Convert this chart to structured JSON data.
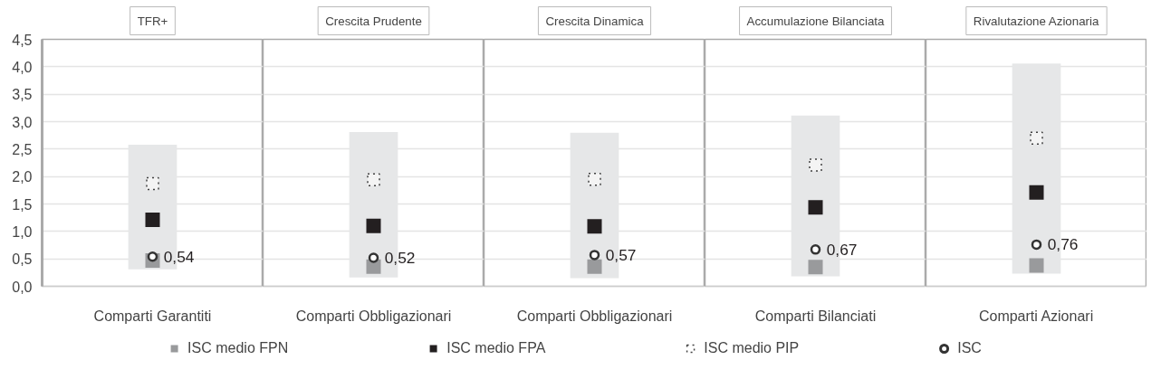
{
  "chart_data": [
    {
      "type": "bar",
      "title": "TFR+",
      "categories": [
        "Comparti Garantiti"
      ],
      "ylim": [
        0,
        4.5
      ],
      "yticks": [
        {
          "value": 0,
          "label": "0,0"
        },
        {
          "value": 0.5,
          "label": "0,5"
        },
        {
          "value": 1,
          "label": "1,0"
        },
        {
          "value": 1.5,
          "label": "1,5"
        },
        {
          "value": 2,
          "label": "2,0"
        },
        {
          "value": 2.5,
          "label": "2,5"
        },
        {
          "value": 3,
          "label": "3,0"
        },
        {
          "value": 3.5,
          "label": "3,5"
        },
        {
          "value": 4,
          "label": "4,0"
        },
        {
          "value": 4.5,
          "label": "4,5"
        }
      ],
      "grid": "y",
      "legend": "bottom",
      "series": [
        {
          "color": "#e6e7e8",
          "values": [
            2.27
          ],
          "base": [
            0.31
          ]
        },
        {
          "type": "scatter",
          "name": "ISC medio FPN",
          "marker": "square",
          "color": "#999a9c",
          "values": [
            0.47
          ]
        },
        {
          "type": "scatter",
          "name": "ISC medio FPA",
          "marker": "square",
          "color": "#231f20",
          "values": [
            1.21
          ]
        },
        {
          "type": "scatter",
          "name": "ISC medio PIP",
          "marker": "square",
          "line_style": "dotted",
          "color": "#404040",
          "values": [
            1.87
          ]
        },
        {
          "type": "scatter",
          "name": "ISC",
          "marker": "circle",
          "color": "#333333",
          "values": [
            0.54
          ],
          "value_labels": [
            "0,54"
          ]
        }
      ]
    },
    {
      "type": "bar",
      "title": "Crescita Prudente",
      "categories": [
        "Comparti Obbligazionari"
      ],
      "ylim": [
        0,
        4.5
      ],
      "yticks": [
        0,
        0.5,
        1,
        1.5,
        2,
        2.5,
        3,
        3.5,
        4,
        4.5
      ],
      "grid": "y",
      "tick_labels": "x",
      "series": [
        {
          "color": "#e6e7e8",
          "values": [
            2.65
          ],
          "base": [
            0.16
          ]
        },
        {
          "type": "scatter",
          "marker": "square",
          "color": "#999a9c",
          "values": [
            0.36
          ]
        },
        {
          "type": "scatter",
          "marker": "square",
          "color": "#231f20",
          "values": [
            1.1
          ]
        },
        {
          "type": "scatter",
          "marker": "square",
          "line_style": "dotted",
          "color": "#404040",
          "values": [
            1.94
          ]
        },
        {
          "type": "scatter",
          "marker": "circle",
          "color": "#333333",
          "values": [
            0.52
          ],
          "value_labels": [
            "0,52"
          ]
        }
      ]
    },
    {
      "type": "bar",
      "title": "Crescita Dinamica",
      "categories": [
        "Comparti Obbligazionari"
      ],
      "ylim": [
        0,
        4.5
      ],
      "yticks": [
        0,
        0.5,
        1,
        1.5,
        2,
        2.5,
        3,
        3.5,
        4,
        4.5
      ],
      "grid": "y",
      "tick_labels": "x",
      "series": [
        {
          "color": "#e6e7e8",
          "values": [
            2.65
          ],
          "base": [
            0.15
          ]
        },
        {
          "type": "scatter",
          "marker": "square",
          "color": "#999a9c",
          "values": [
            0.36
          ]
        },
        {
          "type": "scatter",
          "marker": "square",
          "color": "#231f20",
          "values": [
            1.09
          ]
        },
        {
          "type": "scatter",
          "marker": "square",
          "line_style": "dotted",
          "color": "#404040",
          "values": [
            1.95
          ]
        },
        {
          "type": "scatter",
          "marker": "circle",
          "color": "#333333",
          "values": [
            0.57
          ],
          "value_labels": [
            "0,57"
          ]
        }
      ]
    },
    {
      "type": "bar",
      "title": "Accumulazione Bilanciata",
      "categories": [
        "Comparti Bilanciati"
      ],
      "ylim": [
        0,
        4.5
      ],
      "yticks": [
        0,
        0.5,
        1,
        1.5,
        2,
        2.5,
        3,
        3.5,
        4,
        4.5
      ],
      "grid": "y",
      "tick_labels": "x",
      "series": [
        {
          "color": "#e6e7e8",
          "values": [
            2.93
          ],
          "base": [
            0.18
          ]
        },
        {
          "type": "scatter",
          "marker": "square",
          "color": "#999a9c",
          "values": [
            0.35
          ]
        },
        {
          "type": "scatter",
          "marker": "square",
          "color": "#231f20",
          "values": [
            1.44
          ]
        },
        {
          "type": "scatter",
          "marker": "square",
          "line_style": "dotted",
          "color": "#404040",
          "values": [
            2.21
          ]
        },
        {
          "type": "scatter",
          "marker": "circle",
          "color": "#333333",
          "values": [
            0.67
          ],
          "value_labels": [
            "0,67"
          ]
        }
      ]
    },
    {
      "type": "bar",
      "title": "Rivalutazione Azionaria",
      "categories": [
        "Comparti Azionari"
      ],
      "ylim": [
        0,
        4.5
      ],
      "yticks": [
        0,
        0.5,
        1,
        1.5,
        2,
        2.5,
        3,
        3.5,
        4,
        4.5
      ],
      "grid": "y",
      "tick_labels": "x",
      "series": [
        {
          "color": "#e6e7e8",
          "values": [
            3.83
          ],
          "base": [
            0.23
          ]
        },
        {
          "type": "scatter",
          "marker": "square",
          "color": "#999a9c",
          "values": [
            0.38
          ]
        },
        {
          "type": "scatter",
          "marker": "square",
          "color": "#231f20",
          "values": [
            1.71
          ]
        },
        {
          "type": "scatter",
          "marker": "square",
          "line_style": "dotted",
          "color": "#404040",
          "values": [
            2.7
          ]
        },
        {
          "type": "scatter",
          "marker": "circle",
          "color": "#333333",
          "values": [
            0.76
          ],
          "value_labels": [
            "0,76"
          ]
        }
      ]
    }
  ]
}
